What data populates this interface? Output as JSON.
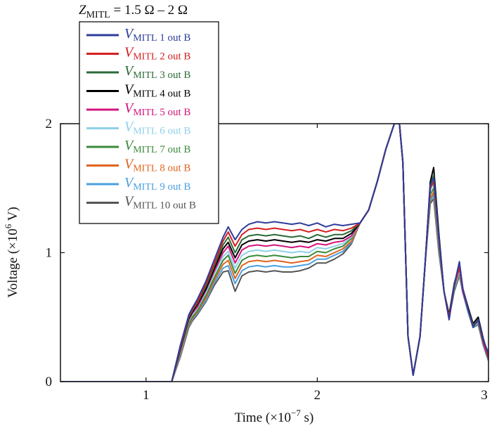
{
  "chart_data": {
    "type": "line",
    "title": {
      "symbol": "Z",
      "subscript": "MITL",
      "rest": " = 1.5 Ω – 2 Ω"
    },
    "xlabel": "Time (×10",
    "xlabel_exp": "−7",
    "xlabel_tail": " s)",
    "ylabel": "Voltage (×10",
    "ylabel_exp": "6",
    "ylabel_tail": " V)",
    "xlim": [
      0.5,
      3.0
    ],
    "ylim": [
      0,
      2
    ],
    "x_ticks": [
      "1",
      "2",
      "3"
    ],
    "y_ticks": [
      "0",
      "1",
      "2"
    ],
    "x_tick_values": [
      1,
      2,
      3
    ],
    "y_tick_values": [
      0,
      1,
      2
    ],
    "legend_position": "upper-left",
    "x": [
      0.5,
      1.15,
      1.2,
      1.25,
      1.27,
      1.3,
      1.35,
      1.4,
      1.45,
      1.48,
      1.52,
      1.56,
      1.6,
      1.65,
      1.7,
      1.75,
      1.8,
      1.85,
      1.9,
      1.95,
      2.0,
      2.05,
      2.1,
      2.15,
      2.2,
      2.25,
      2.3,
      2.35,
      2.4,
      2.45,
      2.48,
      2.5,
      2.53,
      2.56,
      2.6,
      2.63,
      2.66,
      2.68,
      2.71,
      2.74,
      2.77,
      2.8,
      2.83,
      2.85,
      2.88,
      2.91,
      2.94,
      2.97,
      3.0
    ],
    "series": [
      {
        "name": "1",
        "color": "#2e3d9a",
        "values": [
          0,
          0,
          0.28,
          0.52,
          0.57,
          0.64,
          0.78,
          0.95,
          1.12,
          1.2,
          1.1,
          1.18,
          1.22,
          1.24,
          1.23,
          1.24,
          1.23,
          1.22,
          1.23,
          1.21,
          1.23,
          1.2,
          1.22,
          1.21,
          1.22,
          1.23,
          1.33,
          1.55,
          1.8,
          2.0,
          2.0,
          1.7,
          0.35,
          0.05,
          0.35,
          0.92,
          1.52,
          1.58,
          1.12,
          0.7,
          0.48,
          0.75,
          0.93,
          0.72,
          0.56,
          0.42,
          0.48,
          0.32,
          0.22
        ]
      },
      {
        "name": "2",
        "color": "#d42020",
        "values": [
          0,
          0,
          0.27,
          0.51,
          0.56,
          0.62,
          0.76,
          0.92,
          1.09,
          1.16,
          1.05,
          1.14,
          1.18,
          1.19,
          1.18,
          1.19,
          1.18,
          1.17,
          1.18,
          1.16,
          1.18,
          1.16,
          1.18,
          1.17,
          1.19,
          1.23,
          1.33,
          1.55,
          1.8,
          2.0,
          2.0,
          1.7,
          0.35,
          0.05,
          0.35,
          0.92,
          1.5,
          1.55,
          1.1,
          0.7,
          0.5,
          0.74,
          0.9,
          0.72,
          0.56,
          0.43,
          0.47,
          0.31,
          0.21
        ]
      },
      {
        "name": "3",
        "color": "#2a6b38",
        "values": [
          0,
          0,
          0.26,
          0.5,
          0.55,
          0.61,
          0.74,
          0.9,
          1.06,
          1.12,
          1.0,
          1.1,
          1.13,
          1.14,
          1.13,
          1.14,
          1.13,
          1.12,
          1.13,
          1.11,
          1.14,
          1.12,
          1.14,
          1.14,
          1.17,
          1.23,
          1.33,
          1.55,
          1.8,
          2.0,
          2.0,
          1.7,
          0.35,
          0.05,
          0.35,
          0.92,
          1.52,
          1.6,
          1.12,
          0.7,
          0.5,
          0.75,
          0.9,
          0.72,
          0.56,
          0.44,
          0.48,
          0.32,
          0.2
        ]
      },
      {
        "name": "4",
        "color": "#000000",
        "values": [
          0,
          0,
          0.25,
          0.49,
          0.54,
          0.6,
          0.72,
          0.88,
          1.03,
          1.08,
          0.96,
          1.06,
          1.09,
          1.1,
          1.09,
          1.1,
          1.09,
          1.08,
          1.09,
          1.08,
          1.1,
          1.09,
          1.11,
          1.11,
          1.15,
          1.23,
          1.33,
          1.55,
          1.8,
          2.0,
          2.0,
          1.7,
          0.35,
          0.05,
          0.35,
          0.92,
          1.55,
          1.66,
          1.15,
          0.7,
          0.52,
          0.76,
          0.9,
          0.72,
          0.58,
          0.45,
          0.5,
          0.33,
          0.2
        ]
      },
      {
        "name": "5",
        "color": "#d4147e",
        "values": [
          0,
          0,
          0.24,
          0.48,
          0.53,
          0.58,
          0.71,
          0.86,
          1.0,
          1.05,
          0.92,
          1.02,
          1.05,
          1.06,
          1.05,
          1.06,
          1.05,
          1.04,
          1.05,
          1.04,
          1.07,
          1.06,
          1.08,
          1.09,
          1.13,
          1.23,
          1.33,
          1.55,
          1.8,
          2.0,
          2.0,
          1.7,
          0.35,
          0.05,
          0.35,
          0.92,
          1.52,
          1.6,
          1.1,
          0.7,
          0.48,
          0.74,
          0.88,
          0.7,
          0.56,
          0.44,
          0.47,
          0.3,
          0.18
        ]
      },
      {
        "name": "6",
        "color": "#8fd0e8",
        "values": [
          0,
          0,
          0.23,
          0.47,
          0.52,
          0.57,
          0.69,
          0.84,
          0.97,
          1.01,
          0.88,
          0.98,
          1.01,
          1.02,
          1.01,
          1.02,
          1.01,
          1.0,
          1.01,
          1.0,
          1.04,
          1.03,
          1.05,
          1.07,
          1.12,
          1.23,
          1.33,
          1.55,
          1.8,
          2.0,
          2.0,
          1.7,
          0.35,
          0.05,
          0.35,
          0.92,
          1.48,
          1.54,
          1.08,
          0.7,
          0.5,
          0.73,
          0.86,
          0.7,
          0.55,
          0.42,
          0.46,
          0.3,
          0.18
        ]
      },
      {
        "name": "7",
        "color": "#3b8a3b",
        "values": [
          0,
          0,
          0.22,
          0.45,
          0.5,
          0.55,
          0.67,
          0.81,
          0.94,
          0.98,
          0.84,
          0.94,
          0.97,
          0.98,
          0.97,
          0.98,
          0.97,
          0.96,
          0.97,
          0.97,
          1.01,
          1.0,
          1.03,
          1.05,
          1.11,
          1.23,
          1.33,
          1.55,
          1.8,
          2.0,
          2.0,
          1.7,
          0.35,
          0.05,
          0.35,
          0.92,
          1.45,
          1.5,
          1.06,
          0.7,
          0.5,
          0.72,
          0.85,
          0.7,
          0.55,
          0.42,
          0.45,
          0.29,
          0.17
        ]
      },
      {
        "name": "8",
        "color": "#e0641e",
        "values": [
          0,
          0,
          0.21,
          0.44,
          0.49,
          0.54,
          0.65,
          0.79,
          0.91,
          0.94,
          0.8,
          0.9,
          0.93,
          0.94,
          0.93,
          0.94,
          0.93,
          0.92,
          0.93,
          0.94,
          0.98,
          0.97,
          1.0,
          1.03,
          1.09,
          1.23,
          1.33,
          1.55,
          1.8,
          2.0,
          2.0,
          1.7,
          0.35,
          0.05,
          0.35,
          0.92,
          1.42,
          1.47,
          1.04,
          0.7,
          0.5,
          0.72,
          0.84,
          0.7,
          0.55,
          0.42,
          0.45,
          0.29,
          0.17
        ]
      },
      {
        "name": "9",
        "color": "#4aa0e0",
        "values": [
          0,
          0,
          0.2,
          0.43,
          0.48,
          0.53,
          0.63,
          0.77,
          0.88,
          0.9,
          0.76,
          0.86,
          0.89,
          0.9,
          0.89,
          0.9,
          0.89,
          0.89,
          0.9,
          0.91,
          0.95,
          0.95,
          0.98,
          1.01,
          1.08,
          1.23,
          1.33,
          1.55,
          1.8,
          2.0,
          2.0,
          1.7,
          0.35,
          0.05,
          0.35,
          0.92,
          1.4,
          1.45,
          1.02,
          0.7,
          0.5,
          0.71,
          0.83,
          0.69,
          0.54,
          0.42,
          0.44,
          0.28,
          0.16
        ]
      },
      {
        "name": "10",
        "color": "#555555",
        "values": [
          0,
          0,
          0.19,
          0.42,
          0.47,
          0.52,
          0.62,
          0.75,
          0.85,
          0.86,
          0.7,
          0.82,
          0.85,
          0.86,
          0.85,
          0.86,
          0.85,
          0.85,
          0.86,
          0.88,
          0.92,
          0.92,
          0.95,
          0.99,
          1.07,
          1.23,
          1.33,
          1.55,
          1.8,
          2.0,
          2.0,
          1.7,
          0.35,
          0.05,
          0.35,
          0.92,
          1.38,
          1.42,
          1.0,
          0.7,
          0.5,
          0.7,
          0.82,
          0.69,
          0.54,
          0.42,
          0.44,
          0.28,
          0.16
        ]
      }
    ],
    "legend": {
      "symbol": "V",
      "subscript": "MITL",
      "entries": [
        {
          "num": " 1 out B",
          "color": "#2e3d9a"
        },
        {
          "num": " 2 out B",
          "color": "#d42020"
        },
        {
          "num": " 3 out B",
          "color": "#2a6b38"
        },
        {
          "num": " 4 out B",
          "color": "#000000"
        },
        {
          "num": " 5 out B",
          "color": "#d4147e"
        },
        {
          "num": " 6 out B",
          "color": "#8fd0e8"
        },
        {
          "num": " 7 out B",
          "color": "#3b8a3b"
        },
        {
          "num": " 8 out B",
          "color": "#e0641e"
        },
        {
          "num": " 9 out B",
          "color": "#4aa0e0"
        },
        {
          "num": " 10 out B",
          "color": "#555555"
        }
      ]
    }
  }
}
